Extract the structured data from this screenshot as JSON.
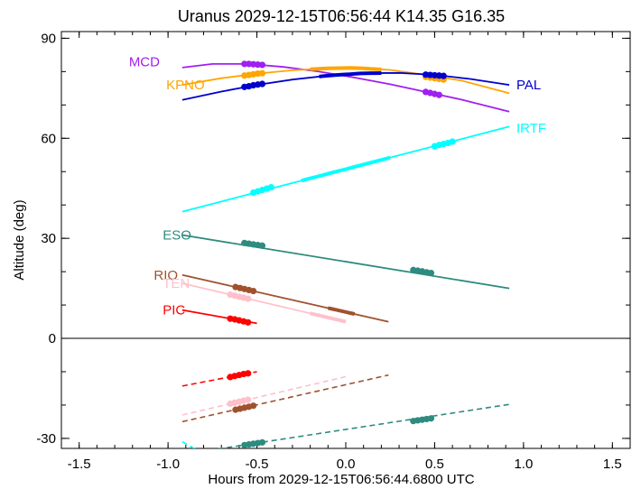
{
  "chart_data": {
    "type": "line",
    "title": "Uranus 2029-12-15T06:56:44  K14.35  G16.35",
    "xlabel": "Hours from 2029-12-15T06:56:44.6800 UTC",
    "ylabel": "Altitude (deg)",
    "xlim": [
      -1.6,
      1.6
    ],
    "ylim": [
      -33,
      92
    ],
    "xticks": [
      -1.5,
      -1.0,
      -0.5,
      0.0,
      0.5,
      1.0,
      1.5
    ],
    "xtick_labels": [
      "-1.5",
      "-1.0",
      "-0.5",
      "0.0",
      "0.5",
      "1.0",
      "1.5"
    ],
    "yticks": [
      -30,
      0,
      30,
      60,
      90
    ],
    "ytick_labels": [
      "-30",
      "0",
      "30",
      "60",
      "90"
    ],
    "horizon": 0,
    "series": [
      {
        "name": "MCD",
        "color": "#a020f0",
        "x": [
          -0.92,
          -0.75,
          -0.55,
          -0.35,
          -0.15,
          0.05,
          0.25,
          0.45,
          0.65,
          0.92
        ],
        "y": [
          81.2,
          82.3,
          82.3,
          81.4,
          80.0,
          78.2,
          76.2,
          73.9,
          71.6,
          68.0
        ],
        "dots": [
          {
            "x": -0.57,
            "y": 82.3
          },
          {
            "x": -0.545,
            "y": 82.3
          },
          {
            "x": -0.52,
            "y": 82.2
          },
          {
            "x": -0.495,
            "y": 82.1
          },
          {
            "x": -0.47,
            "y": 82.0
          },
          {
            "x": 0.45,
            "y": 73.9
          },
          {
            "x": 0.475,
            "y": 73.6
          },
          {
            "x": 0.5,
            "y": 73.3
          },
          {
            "x": 0.525,
            "y": 73.0
          }
        ],
        "segments": []
      },
      {
        "name": "KPNO",
        "color": "#ffa500",
        "x": [
          -0.92,
          -0.7,
          -0.5,
          -0.3,
          -0.1,
          0.05,
          0.25,
          0.45,
          0.65,
          0.92
        ],
        "y": [
          76.0,
          78.0,
          79.4,
          80.4,
          81.0,
          81.1,
          80.5,
          79.0,
          77.3,
          73.5
        ],
        "dots": [
          {
            "x": -0.57,
            "y": 78.8
          },
          {
            "x": -0.545,
            "y": 79.0
          },
          {
            "x": -0.52,
            "y": 79.2
          },
          {
            "x": -0.495,
            "y": 79.4
          },
          {
            "x": -0.47,
            "y": 79.5
          },
          {
            "x": 0.45,
            "y": 78.4
          },
          {
            "x": 0.475,
            "y": 78.2
          },
          {
            "x": 0.5,
            "y": 78.0
          },
          {
            "x": 0.525,
            "y": 77.8
          },
          {
            "x": 0.55,
            "y": 77.6
          }
        ],
        "segments": [
          {
            "x0": -0.2,
            "x1": 0.2
          }
        ]
      },
      {
        "name": "PAL",
        "color": "#0000cd",
        "x": [
          -0.92,
          -0.7,
          -0.5,
          -0.3,
          -0.1,
          0.1,
          0.3,
          0.5,
          0.7,
          0.92
        ],
        "y": [
          71.5,
          74.0,
          76.0,
          77.6,
          78.8,
          79.5,
          79.6,
          79.0,
          77.8,
          76.0
        ],
        "dots": [
          {
            "x": -0.57,
            "y": 75.4
          },
          {
            "x": -0.545,
            "y": 75.6
          },
          {
            "x": -0.52,
            "y": 75.9
          },
          {
            "x": -0.495,
            "y": 76.1
          },
          {
            "x": -0.47,
            "y": 76.3
          },
          {
            "x": 0.45,
            "y": 79.1
          },
          {
            "x": 0.475,
            "y": 79.0
          },
          {
            "x": 0.5,
            "y": 78.9
          },
          {
            "x": 0.525,
            "y": 78.8
          },
          {
            "x": 0.55,
            "y": 78.7
          }
        ],
        "segments": [
          {
            "x0": -0.15,
            "x1": 0.2
          }
        ]
      },
      {
        "name": "IRTF",
        "color": "#00ffff",
        "x": [
          -0.92,
          0.92
        ],
        "y": [
          38.0,
          63.5
        ],
        "dots": [
          {
            "x": -0.52,
            "y": 43.7
          },
          {
            "x": -0.495,
            "y": 44.1
          },
          {
            "x": -0.47,
            "y": 44.5
          },
          {
            "x": -0.445,
            "y": 44.9
          },
          {
            "x": -0.42,
            "y": 45.3
          },
          {
            "x": 0.5,
            "y": 57.6
          },
          {
            "x": 0.525,
            "y": 58.0
          },
          {
            "x": 0.55,
            "y": 58.3
          },
          {
            "x": 0.575,
            "y": 58.6
          },
          {
            "x": 0.6,
            "y": 59.0
          }
        ],
        "segments": [
          {
            "x0": -0.25,
            "x1": 0.25
          }
        ]
      },
      {
        "name": "ESO",
        "color": "#2e8b7f",
        "x": [
          -0.92,
          0.92
        ],
        "y": [
          31.0,
          15.0
        ],
        "dots": [
          {
            "x": -0.57,
            "y": 28.6
          },
          {
            "x": -0.545,
            "y": 28.4
          },
          {
            "x": -0.52,
            "y": 28.2
          },
          {
            "x": -0.495,
            "y": 28.0
          },
          {
            "x": -0.47,
            "y": 27.8
          },
          {
            "x": 0.38,
            "y": 20.5
          },
          {
            "x": 0.405,
            "y": 20.3
          },
          {
            "x": 0.43,
            "y": 20.1
          },
          {
            "x": 0.455,
            "y": 19.8
          },
          {
            "x": 0.48,
            "y": 19.6
          }
        ],
        "segments": []
      },
      {
        "name": "RIO",
        "color": "#a0522d",
        "x": [
          -0.92,
          0.24
        ],
        "y": [
          19.0,
          5.0
        ],
        "dots": [
          {
            "x": -0.62,
            "y": 15.4
          },
          {
            "x": -0.595,
            "y": 15.1
          },
          {
            "x": -0.57,
            "y": 14.8
          },
          {
            "x": -0.545,
            "y": 14.5
          },
          {
            "x": -0.52,
            "y": 14.2
          }
        ],
        "segments": [
          {
            "x0": -0.1,
            "x1": 0.05
          }
        ]
      },
      {
        "name": "TEN",
        "color": "#ffc0cb",
        "x": [
          -0.92,
          0.0
        ],
        "y": [
          16.5,
          5.0
        ],
        "dots": [
          {
            "x": -0.65,
            "y": 13.1
          },
          {
            "x": -0.625,
            "y": 12.8
          },
          {
            "x": -0.6,
            "y": 12.5
          },
          {
            "x": -0.575,
            "y": 12.2
          },
          {
            "x": -0.55,
            "y": 11.9
          }
        ],
        "segments": [
          {
            "x0": -0.2,
            "x1": 0.0
          }
        ]
      },
      {
        "name": "PIC",
        "color": "#ff0000",
        "x": [
          -0.92,
          -0.5
        ],
        "y": [
          8.5,
          4.5
        ],
        "dots": [
          {
            "x": -0.65,
            "y": 5.9
          },
          {
            "x": -0.625,
            "y": 5.7
          },
          {
            "x": -0.6,
            "y": 5.4
          },
          {
            "x": -0.575,
            "y": 5.1
          },
          {
            "x": -0.55,
            "y": 4.8
          }
        ],
        "segments": []
      }
    ],
    "below_horizon": [
      {
        "name": "PIC",
        "color": "#ff0000",
        "x": [
          -0.92,
          -0.5
        ],
        "y": [
          -14.3,
          -10.0
        ],
        "dots": [
          {
            "x": -0.65,
            "y": -11.6
          },
          {
            "x": -0.625,
            "y": -11.3
          },
          {
            "x": -0.6,
            "y": -11.0
          },
          {
            "x": -0.575,
            "y": -10.7
          },
          {
            "x": -0.55,
            "y": -10.5
          }
        ]
      },
      {
        "name": "TEN",
        "color": "#ffc0cb",
        "x": [
          -0.92,
          0.0
        ],
        "y": [
          -23.0,
          -11.5
        ],
        "dots": [
          {
            "x": -0.65,
            "y": -19.6
          },
          {
            "x": -0.625,
            "y": -19.3
          },
          {
            "x": -0.6,
            "y": -19.0
          },
          {
            "x": -0.575,
            "y": -18.7
          },
          {
            "x": -0.55,
            "y": -18.4
          }
        ]
      },
      {
        "name": "RIO",
        "color": "#a0522d",
        "x": [
          -0.92,
          0.24
        ],
        "y": [
          -25.0,
          -11.0
        ],
        "dots": [
          {
            "x": -0.62,
            "y": -21.4
          },
          {
            "x": -0.595,
            "y": -21.1
          },
          {
            "x": -0.57,
            "y": -20.8
          },
          {
            "x": -0.545,
            "y": -20.5
          },
          {
            "x": -0.52,
            "y": -20.2
          }
        ]
      },
      {
        "name": "ESO",
        "color": "#2e8b7f",
        "x": [
          -0.82,
          0.92
        ],
        "y": [
          -34.0,
          -19.8
        ],
        "dots": [
          {
            "x": -0.57,
            "y": -32.0
          },
          {
            "x": -0.545,
            "y": -31.8
          },
          {
            "x": -0.52,
            "y": -31.6
          },
          {
            "x": -0.495,
            "y": -31.4
          },
          {
            "x": -0.47,
            "y": -31.2
          },
          {
            "x": 0.38,
            "y": -24.8
          },
          {
            "x": 0.405,
            "y": -24.6
          },
          {
            "x": 0.43,
            "y": -24.4
          },
          {
            "x": 0.455,
            "y": -24.2
          },
          {
            "x": 0.48,
            "y": -24.0
          }
        ]
      },
      {
        "name": "IRTF",
        "color": "#00ffff",
        "x": [
          -0.92,
          -0.82
        ],
        "y": [
          -31.0,
          -34.0
        ],
        "dots": []
      }
    ],
    "labels": [
      {
        "text": "MCD",
        "series": "MCD",
        "x": -1.22,
        "y": 83.0
      },
      {
        "text": "KPNO",
        "series": "KPNO",
        "x": -1.01,
        "y": 76.0
      },
      {
        "text": "PAL",
        "series": "PAL",
        "x": 0.96,
        "y": 76.0
      },
      {
        "text": "IRTF",
        "series": "IRTF",
        "x": 0.96,
        "y": 63.0
      },
      {
        "text": "ESO",
        "series": "ESO",
        "x": -1.03,
        "y": 31.0
      },
      {
        "text": "RIO",
        "series": "RIO",
        "x": -1.08,
        "y": 19.0
      },
      {
        "text": "TEN",
        "series": "TEN",
        "x": -1.03,
        "y": 16.5
      },
      {
        "text": "PIC",
        "series": "PIC",
        "x": -1.03,
        "y": 8.5
      }
    ],
    "grid": false,
    "legend": "none"
  }
}
